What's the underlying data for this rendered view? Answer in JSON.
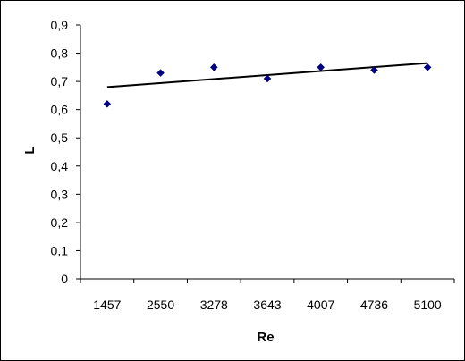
{
  "chart_data": {
    "type": "scatter",
    "categories": [
      "1457",
      "2550",
      "3278",
      "3643",
      "4007",
      "4736",
      "5100"
    ],
    "series": [
      {
        "values": [
          0.62,
          0.73,
          0.75,
          0.71,
          0.75,
          0.74,
          0.75
        ]
      }
    ],
    "trendline": {
      "type": "linear",
      "start": 0.68,
      "end": 0.765
    },
    "xlabel": "Re",
    "ylabel": "L",
    "ylim": [
      0,
      0.9
    ],
    "yticks": [
      "0",
      "0,1",
      "0,2",
      "0,3",
      "0,4",
      "0,5",
      "0,6",
      "0,7",
      "0,8",
      "0,9"
    ],
    "grid": false,
    "legend": "none",
    "marker_color": "#000080",
    "line_color": "#000000"
  }
}
